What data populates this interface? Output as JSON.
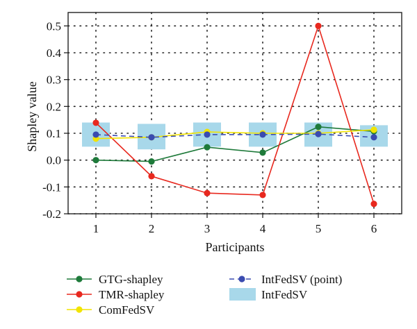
{
  "chart_data": {
    "type": "line",
    "xlabel": "Participants",
    "ylabel": "Shapley value",
    "x": [
      1,
      2,
      3,
      4,
      5,
      6
    ],
    "xlim": [
      0.5,
      6.5
    ],
    "ylim": [
      -0.2,
      0.55
    ],
    "yticks": [
      -0.2,
      -0.1,
      0.0,
      0.1,
      0.2,
      0.3,
      0.4,
      0.5
    ],
    "ytick_labels": [
      "-0.2",
      "-0.1",
      "0.0",
      "0.1",
      "0.2",
      "0.3",
      "0.4",
      "0.5"
    ],
    "xtick_labels": [
      "1",
      "2",
      "3",
      "4",
      "5",
      "6"
    ],
    "grid": true,
    "legend_position": "bottom",
    "series": [
      {
        "name": "GTG-shapley",
        "style": "solid-line-dots",
        "color": "#1e7a3a",
        "values": [
          0.0,
          -0.005,
          0.048,
          0.028,
          0.124,
          0.107
        ]
      },
      {
        "name": "TMR-shapley",
        "style": "solid-line-dots",
        "color": "#e8281e",
        "values": [
          0.139,
          -0.06,
          -0.123,
          -0.13,
          0.5,
          -0.163
        ]
      },
      {
        "name": "ComFedSV",
        "style": "solid-line-dots",
        "color": "#f2e400",
        "values": [
          0.08,
          0.085,
          0.105,
          0.1,
          0.1,
          0.113
        ]
      },
      {
        "name": "IntFedSV (point)",
        "style": "dashed-line-dots",
        "color": "#3a4bb0",
        "values": [
          0.095,
          0.085,
          0.095,
          0.095,
          0.097,
          0.085
        ]
      }
    ],
    "intervals": {
      "name": "IntFedSV",
      "color": "#a8d8ea",
      "lower": [
        0.05,
        0.04,
        0.05,
        0.05,
        0.05,
        0.05
      ],
      "upper": [
        0.14,
        0.135,
        0.14,
        0.14,
        0.14,
        0.13
      ]
    }
  }
}
